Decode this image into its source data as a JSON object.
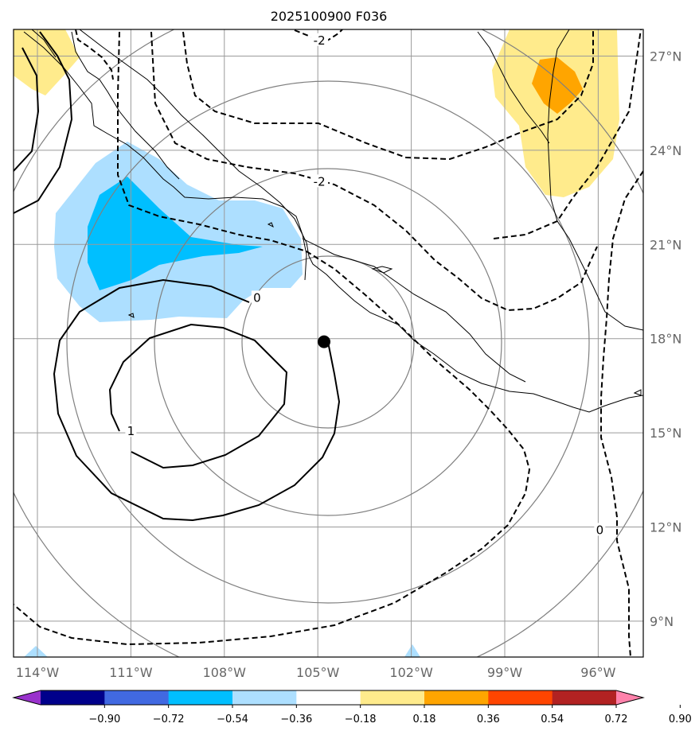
{
  "chart_data": {
    "type": "contour",
    "title": "2025100900 F036",
    "x_range": [
      -114.5,
      -94.5
    ],
    "y_range": [
      8,
      28
    ],
    "x_ticks": [
      {
        "value": -114,
        "label": "114°W"
      },
      {
        "value": -111,
        "label": "111°W"
      },
      {
        "value": -108,
        "label": "108°W"
      },
      {
        "value": -105,
        "label": "105°W"
      },
      {
        "value": -102,
        "label": "102°W"
      },
      {
        "value": -99,
        "label": "99°W"
      },
      {
        "value": -96,
        "label": "96°W"
      }
    ],
    "y_ticks": [
      {
        "value": 27,
        "label": "27°N"
      },
      {
        "value": 24,
        "label": "24°N"
      },
      {
        "value": 21,
        "label": "21°N"
      },
      {
        "value": 18,
        "label": "18°N"
      },
      {
        "value": 15,
        "label": "15°N"
      },
      {
        "value": 12,
        "label": "12°N"
      },
      {
        "value": 9,
        "label": "9°N"
      }
    ],
    "grid": true,
    "storm_center": {
      "lon": -104.8,
      "lat": 17.9
    },
    "contour_labels": [
      {
        "text": "-2",
        "lon": -104.95,
        "lat": 27.5
      },
      {
        "text": "-2",
        "lon": -104.95,
        "lat": 23.0
      },
      {
        "text": "0",
        "lon": -106.95,
        "lat": 19.3
      },
      {
        "text": "1",
        "lon": -111.0,
        "lat": 15.05
      },
      {
        "text": "0",
        "lon": -95.95,
        "lat": 11.9
      }
    ],
    "colorbar": {
      "levels": [
        -0.9,
        -0.72,
        -0.54,
        -0.36,
        -0.18,
        0.18,
        0.36,
        0.54,
        0.72,
        0.9
      ],
      "tick_labels": [
        "−0.90",
        "−0.72",
        "−0.54",
        "−0.36",
        "−0.18",
        "0.18",
        "0.36",
        "0.54",
        "0.72",
        "0.90"
      ],
      "colors": [
        "#9932cc",
        "#00008b",
        "#4169e1",
        "#00bfff",
        "#addfff",
        "#ffffff",
        "#ffeb8c",
        "#ffa500",
        "#ff4500",
        "#b22222",
        "#ff82ab"
      ],
      "extend": "both"
    }
  }
}
